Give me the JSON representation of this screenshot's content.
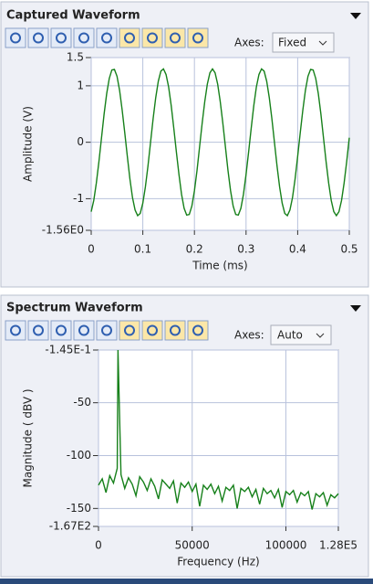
{
  "panels": [
    {
      "title": "Captured Waveform",
      "axes_label": "Axes:",
      "axes_mode": "Fixed"
    },
    {
      "title": "Spectrum Waveform",
      "axes_label": "Axes:",
      "axes_mode": "Auto"
    }
  ],
  "chart_data": [
    {
      "type": "line",
      "x_label": "Time (ms)",
      "y_label": "Amplitude (V)",
      "color": "#16801a",
      "grid": true,
      "xlim": [
        0,
        0.5
      ],
      "xticks": [
        0,
        0.1,
        0.2,
        0.3,
        0.4,
        0.5
      ],
      "ylim": [
        -1.56,
        1.5
      ],
      "yticks": [
        {
          "value": -1.56,
          "label": "-1.56E0"
        },
        -1,
        0,
        1,
        1.5
      ],
      "x": [
        0,
        0.005,
        0.01,
        0.015,
        0.02,
        0.025,
        0.03,
        0.035,
        0.04,
        0.045,
        0.05,
        0.055,
        0.06,
        0.065,
        0.07,
        0.075,
        0.08,
        0.085,
        0.09,
        0.095,
        0.1,
        0.105,
        0.11,
        0.115,
        0.12,
        0.125,
        0.13,
        0.135,
        0.14,
        0.145,
        0.15,
        0.155,
        0.16,
        0.165,
        0.17,
        0.175,
        0.18,
        0.185,
        0.19,
        0.195,
        0.2,
        0.205,
        0.21,
        0.215,
        0.22,
        0.225,
        0.23,
        0.235,
        0.24,
        0.245,
        0.25,
        0.255,
        0.26,
        0.265,
        0.27,
        0.275,
        0.28,
        0.285,
        0.29,
        0.295,
        0.3,
        0.305,
        0.31,
        0.315,
        0.32,
        0.325,
        0.33,
        0.335,
        0.34,
        0.345,
        0.35,
        0.355,
        0.36,
        0.365,
        0.37,
        0.375,
        0.38,
        0.385,
        0.39,
        0.395,
        0.4,
        0.405,
        0.41,
        0.415,
        0.42,
        0.425,
        0.43,
        0.435,
        0.44,
        0.445,
        0.45,
        0.455,
        0.46,
        0.465,
        0.47,
        0.475,
        0.48,
        0.485,
        0.49,
        0.495,
        0.5
      ],
      "values": [
        -1.23,
        -1.03,
        -0.72,
        -0.34,
        0.08,
        0.5,
        0.86,
        1.13,
        1.28,
        1.29,
        1.17,
        0.92,
        0.57,
        0.17,
        -0.25,
        -0.65,
        -0.98,
        -1.2,
        -1.3,
        -1.26,
        -1.08,
        -0.79,
        -0.42,
        0,
        0.42,
        0.79,
        1.08,
        1.26,
        1.3,
        1.2,
        0.98,
        0.65,
        0.25,
        -0.17,
        -0.57,
        -0.92,
        -1.17,
        -1.29,
        -1.28,
        -1.13,
        -0.86,
        -0.5,
        -0.08,
        0.34,
        0.72,
        1.03,
        1.23,
        1.3,
        1.23,
        1.03,
        0.72,
        0.34,
        -0.08,
        -0.5,
        -0.86,
        -1.13,
        -1.28,
        -1.29,
        -1.17,
        -0.92,
        -0.57,
        -0.17,
        0.25,
        0.65,
        0.98,
        1.2,
        1.3,
        1.26,
        1.08,
        0.79,
        0.42,
        0,
        -0.42,
        -0.79,
        -1.08,
        -1.26,
        -1.3,
        -1.2,
        -0.98,
        -0.65,
        -0.25,
        0.17,
        0.57,
        0.92,
        1.17,
        1.29,
        1.28,
        1.13,
        0.86,
        0.5,
        0.08,
        -0.34,
        -0.72,
        -1.03,
        -1.23,
        -1.3,
        -1.23,
        -1.03,
        -0.72,
        -0.34,
        0.08
      ]
    },
    {
      "type": "line",
      "x_label": "Frequency (Hz)",
      "y_label": "Magnitude ( dBV )",
      "color": "#16801a",
      "grid": true,
      "xlim": [
        0,
        128000
      ],
      "xticks": [
        0,
        50000,
        100000,
        {
          "value": 128000,
          "label": "1.28E5"
        }
      ],
      "ylim": [
        -167,
        -0.145
      ],
      "yticks": [
        {
          "value": -167,
          "label": "-1.67E2"
        },
        -150,
        -100,
        -50,
        {
          "value": -0.145,
          "label": "-1.45E-1"
        }
      ],
      "x": [
        0,
        2000,
        4000,
        6000,
        8000,
        10000,
        10400,
        12000,
        14000,
        16000,
        18000,
        20000,
        22000,
        24000,
        26000,
        28000,
        30000,
        32000,
        34000,
        36000,
        38000,
        40000,
        42000,
        44000,
        46000,
        48000,
        50000,
        52000,
        54000,
        56000,
        58000,
        60000,
        62000,
        64000,
        66000,
        68000,
        70000,
        72000,
        74000,
        76000,
        78000,
        80000,
        82000,
        84000,
        86000,
        88000,
        90000,
        92000,
        94000,
        96000,
        98000,
        100000,
        102000,
        104000,
        106000,
        108000,
        110000,
        112000,
        114000,
        116000,
        118000,
        120000,
        122000,
        124000,
        126000,
        128000
      ],
      "values": [
        -128,
        -122,
        -135,
        -119,
        -126,
        -112,
        -0.145,
        -118,
        -131,
        -121,
        -127,
        -138,
        -120,
        -125,
        -133,
        -122,
        -129,
        -141,
        -123,
        -127,
        -131,
        -124,
        -145,
        -126,
        -130,
        -125,
        -134,
        -127,
        -148,
        -128,
        -132,
        -127,
        -136,
        -129,
        -143,
        -130,
        -133,
        -128,
        -150,
        -131,
        -134,
        -130,
        -139,
        -132,
        -146,
        -131,
        -136,
        -133,
        -140,
        -132,
        -149,
        -134,
        -137,
        -133,
        -144,
        -135,
        -138,
        -134,
        -151,
        -136,
        -139,
        -135,
        -147,
        -137,
        -140,
        -136
      ]
    }
  ]
}
